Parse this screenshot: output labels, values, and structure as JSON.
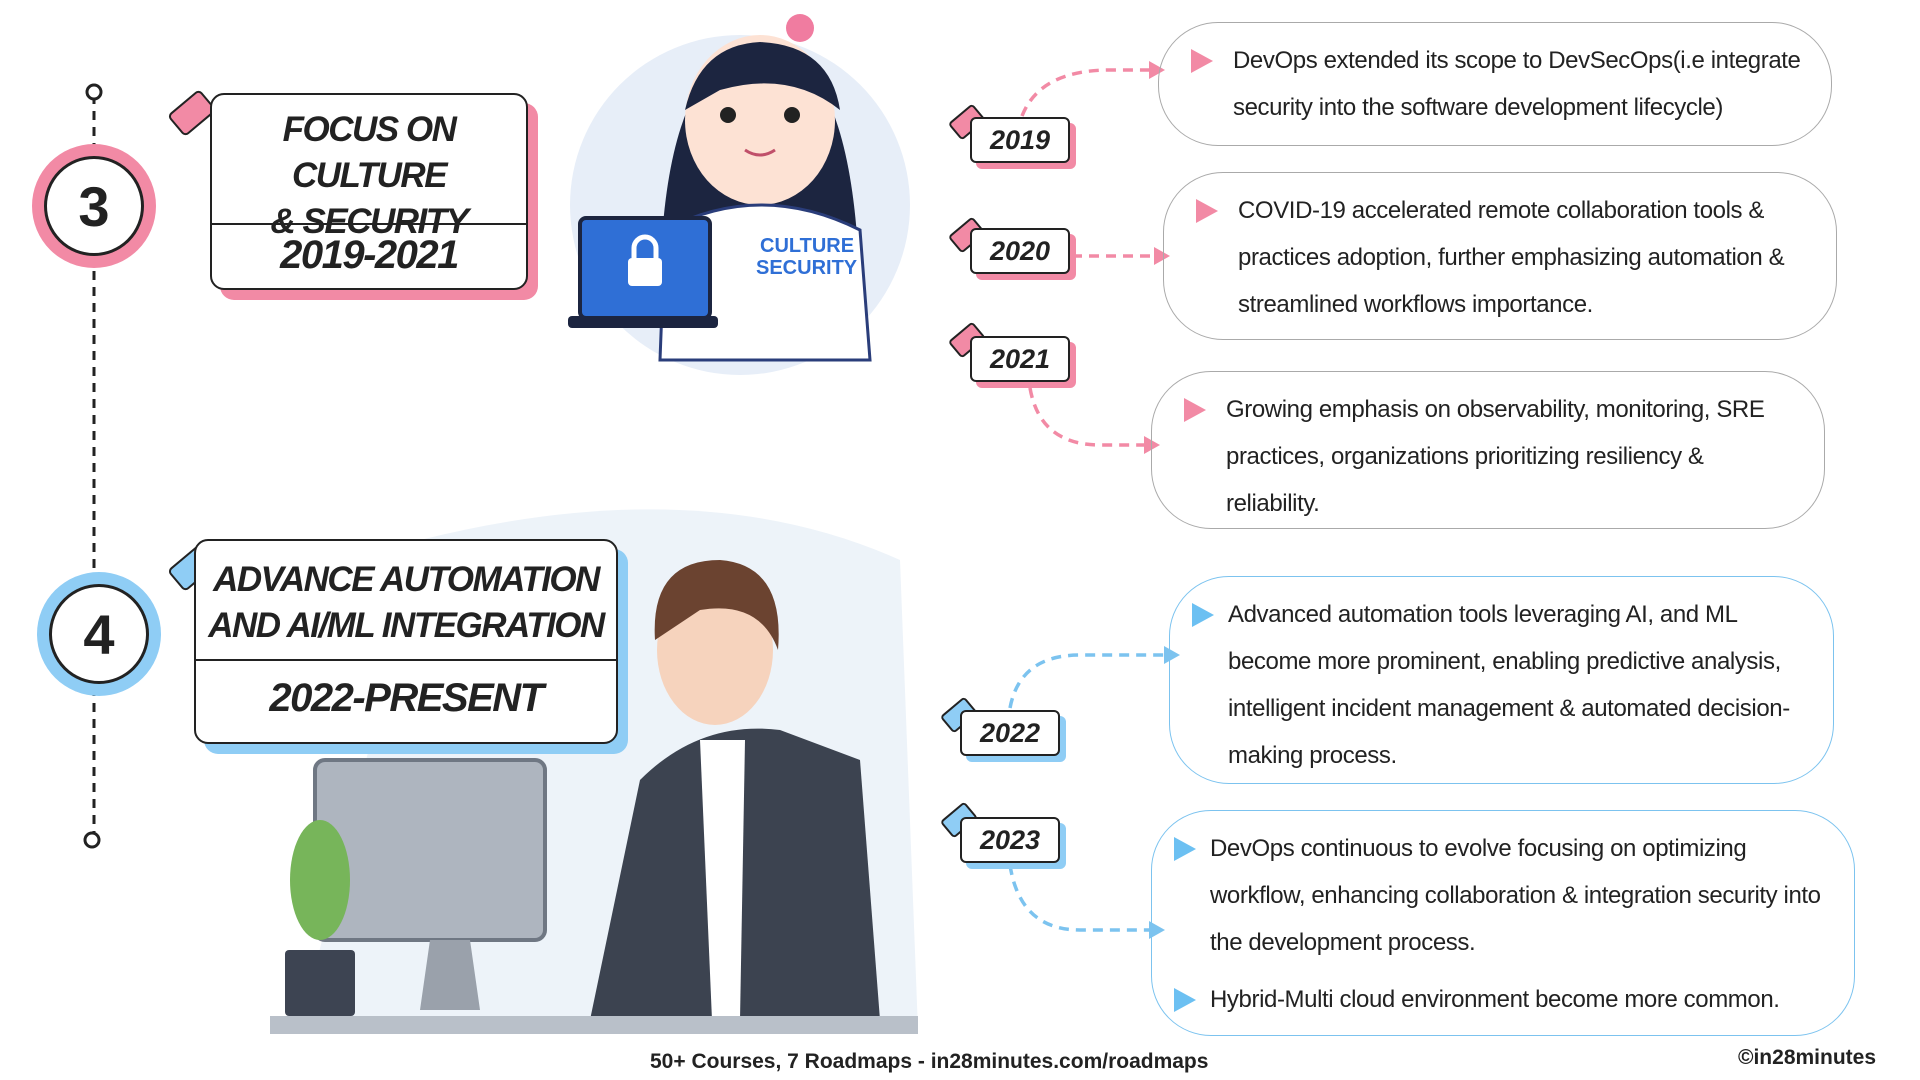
{
  "phases": [
    {
      "number": "3",
      "title_lines": [
        "FOCUS ON CULTURE",
        "& SECURITY"
      ],
      "period": "2019-2021",
      "illustration_text": [
        "CULTURE",
        "SECURITY"
      ],
      "events": [
        {
          "year": "2019",
          "points": [
            "DevOps extended its scope to DevSecOps(i.e integrate security into the software development lifecycle)"
          ]
        },
        {
          "year": "2020",
          "points": [
            "COVID-19 accelerated remote collaboration tools & practices adoption, further emphasizing automation & streamlined workflows importance."
          ]
        },
        {
          "year": "2021",
          "points": [
            "Growing emphasis on observability, monitoring, SRE practices, organizations prioritizing resiliency & reliability."
          ]
        }
      ]
    },
    {
      "number": "4",
      "title_lines": [
        "ADVANCE AUTOMATION",
        "AND AI/ML INTEGRATION"
      ],
      "period": "2022-PRESENT",
      "events": [
        {
          "year": "2022",
          "points": [
            "Advanced automation tools leveraging AI, and ML become more prominent, enabling predictive analysis, intelligent incident management & automated decision-making process."
          ]
        },
        {
          "year": "2023",
          "points": [
            "DevOps continuous to evolve focusing on optimizing workflow, enhancing collaboration & integration security into the development process.",
            "Hybrid-Multi cloud environment become more common."
          ]
        }
      ]
    }
  ],
  "footer": {
    "text": "50+ Courses, 7 Roadmaps - in28minutes.com/roadmaps",
    "credit": "©in28minutes"
  }
}
